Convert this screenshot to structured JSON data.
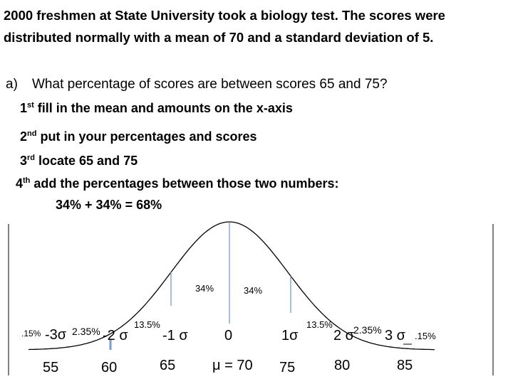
{
  "intro": {
    "lines": [
      "2000 freshmen at State University took a biology test. The scores were",
      "distributed normally with a mean of 70 and a standard deviation of 5."
    ]
  },
  "question": {
    "label": "a)",
    "text": "What percentage of scores are between scores 65 and 75?"
  },
  "steps": [
    {
      "ordinal": "1",
      "suffix": "st",
      "text": "fill in the mean and amounts on the x-axis"
    },
    {
      "ordinal": "2",
      "suffix": "nd",
      "text": "put in your percentages and scores"
    },
    {
      "ordinal": "3",
      "suffix": "rd",
      "text": "locate 65 and 75"
    },
    {
      "ordinal": "4",
      "suffix": "th",
      "text": "add the percentages between those two numbers:"
    }
  ],
  "answer": "34% + 34% = 68%",
  "diagram": {
    "percent_labels": [
      ".15%",
      "2.35%",
      "13.5%",
      "34%",
      "34%",
      "13.5%",
      "2.35%",
      ".15%"
    ],
    "sigma_labels": [
      "-3σ",
      "-2 σ",
      "-1 σ",
      "0",
      "1σ",
      "2 σ",
      "3 σ"
    ],
    "score_labels": [
      "55",
      "60",
      "65",
      "μ = 70",
      "75",
      "80",
      "85"
    ]
  }
}
